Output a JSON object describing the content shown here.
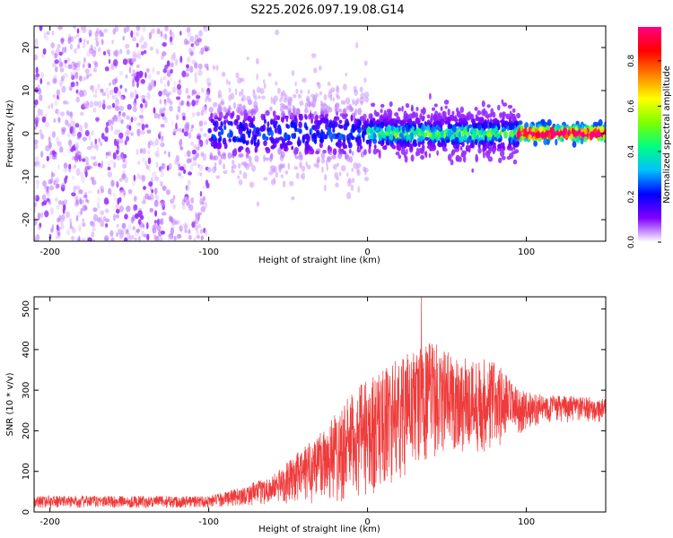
{
  "title": "S225.2026.097.19.08.G14",
  "colors": {
    "signal": "#ef3b3b",
    "axis": "#000000",
    "background": "#ffffff",
    "points": [
      "#e7d6f7",
      "#c9a6ef",
      "#a868e6",
      "#8a2be2",
      "#5a00ff",
      "#1f2bff",
      "#00e5d0",
      "#38ff38",
      "#ff2a2a"
    ]
  },
  "chart_data": [
    {
      "type": "scatter",
      "name": "spectrogram",
      "title": "S225.2026.097.19.08.G14",
      "xlabel": "Height of straight line (km)",
      "ylabel": "Frequency (Hz)",
      "xlim": [
        -210,
        150
      ],
      "ylim": [
        -25,
        25
      ],
      "xticks": [
        -200,
        -100,
        0,
        100
      ],
      "yticks": [
        -20,
        -10,
        0,
        10,
        20
      ],
      "colorbar": {
        "label": "Normalized spectral amplitude",
        "range": [
          0,
          0.95
        ],
        "ticks": [
          "0.0",
          "0.2",
          "0.4",
          "0.6",
          "0.8"
        ],
        "tick_values": [
          0,
          0.2,
          0.4,
          0.6,
          0.8
        ],
        "colormap": [
          "#ffffff",
          "#8000ff",
          "#0000ff",
          "#00c0ff",
          "#00ff80",
          "#80ff00",
          "#ffff00",
          "#ff8000",
          "#ff0000",
          "#ff0080"
        ]
      },
      "description_bands": [
        {
          "x_range": [
            -210,
            -100
          ],
          "freq_spread": 25,
          "amplitude": 0.05
        },
        {
          "x_range": [
            -100,
            0
          ],
          "freq_spread": 6,
          "amplitude": 0.15
        },
        {
          "x_range": [
            0,
            95
          ],
          "freq_spread": 3,
          "amplitude": 0.3
        },
        {
          "x_range": [
            95,
            150
          ],
          "freq_spread": 1,
          "amplitude": 0.85
        }
      ]
    },
    {
      "type": "line",
      "name": "snr",
      "xlabel": "Height of straight line (km)",
      "ylabel": "SNR (10 * v/v)",
      "xlim": [
        -210,
        150
      ],
      "ylim": [
        0,
        530
      ],
      "xticks": [
        -200,
        -100,
        0,
        100
      ],
      "yticks": [
        0,
        100,
        200,
        300,
        400,
        500
      ],
      "envelope": [
        {
          "x": -210,
          "low": 10,
          "high": 40
        },
        {
          "x": -100,
          "low": 10,
          "high": 40
        },
        {
          "x": -80,
          "low": 15,
          "high": 60
        },
        {
          "x": -60,
          "low": 20,
          "high": 90
        },
        {
          "x": -40,
          "low": 20,
          "high": 160
        },
        {
          "x": -20,
          "low": 20,
          "high": 250
        },
        {
          "x": 0,
          "low": 30,
          "high": 330
        },
        {
          "x": 20,
          "low": 80,
          "high": 380
        },
        {
          "x": 40,
          "low": 130,
          "high": 420
        },
        {
          "x": 60,
          "low": 140,
          "high": 380
        },
        {
          "x": 80,
          "low": 140,
          "high": 380
        },
        {
          "x": 95,
          "low": 190,
          "high": 300
        },
        {
          "x": 110,
          "low": 220,
          "high": 290
        },
        {
          "x": 150,
          "low": 220,
          "high": 280
        }
      ],
      "peak": {
        "x": 34,
        "y": 530
      }
    }
  ]
}
